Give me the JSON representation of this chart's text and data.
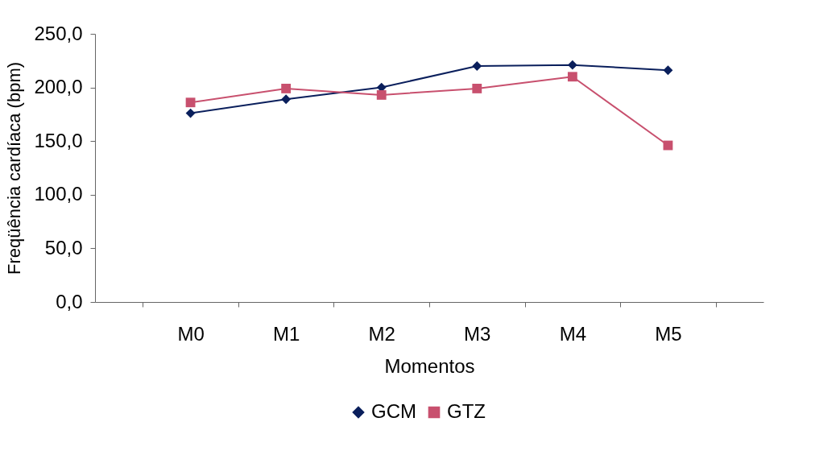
{
  "chart_data": {
    "type": "line",
    "xlabel": "Momentos",
    "ylabel": "Freqüência cardíaca (bpm)",
    "categories": [
      "M0",
      "M1",
      "M2",
      "M3",
      "M4",
      "M5"
    ],
    "series": [
      {
        "name": "GCM",
        "color": "#0a1f5c",
        "marker": "diamond",
        "values": [
          176,
          189,
          200,
          220,
          221,
          216
        ]
      },
      {
        "name": "GTZ",
        "color": "#c8506e",
        "marker": "square",
        "values": [
          186,
          199,
          193,
          199,
          210,
          146
        ]
      }
    ],
    "ylim": [
      0,
      250
    ],
    "yticks": [
      {
        "value": 0,
        "label": "0,0"
      },
      {
        "value": 50,
        "label": "50,0"
      },
      {
        "value": 100,
        "label": "100,0"
      },
      {
        "value": 150,
        "label": "150,0"
      },
      {
        "value": 200,
        "label": "200,0"
      },
      {
        "value": 250,
        "label": "250,0"
      }
    ],
    "grid": false,
    "legend": "bottom",
    "line_style": "solid"
  }
}
